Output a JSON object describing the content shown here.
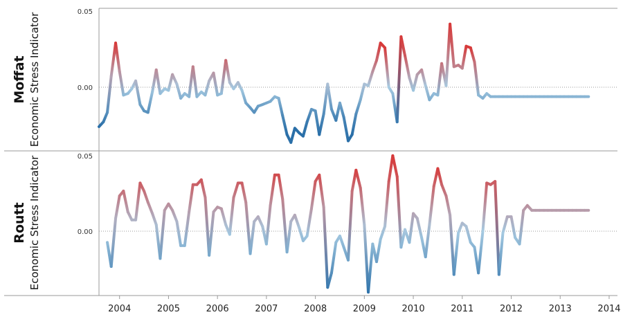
{
  "chart_data": {
    "type": "line",
    "x_axis": {
      "tick_labels": [
        "2004",
        "2005",
        "2006",
        "2007",
        "2008",
        "2009",
        "2010",
        "2011",
        "2012",
        "2013",
        "2014"
      ],
      "range": [
        2003.58,
        2014.17
      ]
    },
    "panels": [
      {
        "title": "Moffat",
        "ylabel": "Economic Stress Indicator",
        "yticks": [
          "0.05",
          "0.00"
        ],
        "ylim": [
          -0.04,
          0.05
        ],
        "zero_line": "dotted",
        "color_scale": {
          "low": "#2a6fa8",
          "mid": "#a7cbe2",
          "high": "#d73a3a",
          "max_abs": 0.025
        },
        "series": [
          {
            "x": [
              2003.58,
              2003.67,
              2003.75,
              2003.83,
              2003.92,
              2004.0,
              2004.08,
              2004.17,
              2004.25,
              2004.33,
              2004.42,
              2004.5,
              2004.58,
              2004.67,
              2004.75,
              2004.83,
              2004.92,
              2005.0,
              2005.08,
              2005.17,
              2005.25,
              2005.33,
              2005.42,
              2005.5,
              2005.58,
              2005.67,
              2005.75,
              2005.83,
              2005.92,
              2006.0,
              2006.08,
              2006.17,
              2006.25,
              2006.33,
              2006.42,
              2006.5,
              2006.58,
              2006.67,
              2006.75,
              2006.83,
              2006.92,
              2007.0,
              2007.08,
              2007.17,
              2007.25,
              2007.33,
              2007.42,
              2007.5,
              2007.58,
              2007.67,
              2007.75,
              2007.83,
              2007.92,
              2008.0,
              2008.08,
              2008.17,
              2008.25,
              2008.33,
              2008.42,
              2008.5,
              2008.58,
              2008.67,
              2008.75,
              2008.83,
              2008.92,
              2009.0,
              2009.08,
              2009.17,
              2009.25,
              2009.33,
              2009.42,
              2009.5,
              2009.58,
              2009.67,
              2009.75,
              2009.83,
              2009.92,
              2010.0,
              2010.08,
              2010.17,
              2010.25,
              2010.33,
              2010.42,
              2010.5,
              2010.58,
              2010.67,
              2010.75,
              2010.83,
              2010.92,
              2011.0,
              2011.08,
              2011.17,
              2011.25,
              2011.33,
              2011.42,
              2011.5,
              2011.58,
              2011.67,
              2011.75,
              2011.83,
              2011.92,
              2012.0,
              2012.08,
              2012.17,
              2012.25,
              2012.33,
              2012.42,
              2012.5,
              2012.58,
              2012.67,
              2012.75,
              2012.83,
              2012.92,
              2013.0,
              2013.08,
              2013.17,
              2013.25,
              2013.33,
              2013.42,
              2013.5,
              2013.58
            ],
            "y": [
              -0.025,
              -0.022,
              -0.016,
              0.007,
              0.028,
              0.01,
              -0.005,
              -0.004,
              -0.001,
              0.004,
              -0.011,
              -0.015,
              -0.016,
              -0.003,
              0.011,
              -0.004,
              -0.001,
              -0.002,
              0.008,
              0.002,
              -0.007,
              -0.004,
              -0.006,
              0.013,
              -0.006,
              -0.003,
              -0.005,
              0.004,
              0.009,
              -0.005,
              -0.004,
              0.017,
              0.003,
              -0.001,
              0.003,
              -0.002,
              -0.01,
              -0.013,
              -0.016,
              -0.012,
              -0.011,
              -0.01,
              -0.009,
              -0.006,
              -0.007,
              -0.018,
              -0.03,
              -0.035,
              -0.026,
              -0.029,
              -0.031,
              -0.022,
              -0.014,
              -0.015,
              -0.03,
              -0.017,
              0.002,
              -0.014,
              -0.021,
              -0.01,
              -0.019,
              -0.034,
              -0.03,
              -0.017,
              -0.008,
              0.002,
              0.001,
              0.01,
              0.017,
              0.028,
              0.025,
              0.0,
              -0.004,
              -0.022,
              0.032,
              0.02,
              0.006,
              -0.002,
              0.008,
              0.011,
              0.001,
              -0.008,
              -0.004,
              -0.005,
              0.015,
              0.001,
              0.04,
              0.013,
              0.014,
              0.012,
              0.026,
              0.025,
              0.016,
              -0.005,
              -0.007,
              -0.004,
              -0.006,
              -0.006,
              -0.006,
              -0.006,
              -0.006,
              -0.006,
              -0.006,
              -0.006,
              -0.006,
              -0.006,
              -0.006,
              -0.006,
              -0.006,
              -0.006,
              -0.006,
              -0.006,
              -0.006,
              -0.006,
              -0.006,
              -0.006,
              -0.006,
              -0.006,
              -0.006,
              -0.006,
              -0.006
            ]
          }
        ]
      },
      {
        "title": "Routt",
        "ylabel": "Economic Stress Indicator",
        "yticks": [
          "0.05",
          "0.00"
        ],
        "ylim": [
          -0.04,
          0.05
        ],
        "zero_line": "dotted",
        "color_scale": {
          "low": "#2a6fa8",
          "mid": "#a7cbe2",
          "high": "#d73a3a",
          "max_abs": 0.04
        },
        "series": [
          {
            "x": [
              2003.75,
              2003.83,
              2003.92,
              2004.0,
              2004.08,
              2004.17,
              2004.25,
              2004.33,
              2004.42,
              2004.5,
              2004.58,
              2004.67,
              2004.75,
              2004.83,
              2004.92,
              2005.0,
              2005.08,
              2005.17,
              2005.25,
              2005.33,
              2005.42,
              2005.5,
              2005.58,
              2005.67,
              2005.75,
              2005.83,
              2005.92,
              2006.0,
              2006.08,
              2006.17,
              2006.25,
              2006.33,
              2006.42,
              2006.5,
              2006.58,
              2006.67,
              2006.75,
              2006.83,
              2006.92,
              2007.0,
              2007.08,
              2007.17,
              2007.25,
              2007.33,
              2007.42,
              2007.5,
              2007.58,
              2007.67,
              2007.75,
              2007.83,
              2007.92,
              2008.0,
              2008.08,
              2008.17,
              2008.25,
              2008.33,
              2008.42,
              2008.5,
              2008.58,
              2008.67,
              2008.75,
              2008.83,
              2008.92,
              2009.0,
              2009.08,
              2009.17,
              2009.25,
              2009.33,
              2009.42,
              2009.5,
              2009.58,
              2009.67,
              2009.75,
              2009.83,
              2009.92,
              2010.0,
              2010.08,
              2010.17,
              2010.25,
              2010.33,
              2010.42,
              2010.5,
              2010.58,
              2010.67,
              2010.75,
              2010.83,
              2010.92,
              2011.0,
              2011.08,
              2011.17,
              2011.25,
              2011.33,
              2011.42,
              2011.5,
              2011.58,
              2011.67,
              2011.75,
              2011.83,
              2011.92,
              2012.0,
              2012.08,
              2012.17,
              2012.25,
              2012.33,
              2012.42,
              2012.5,
              2012.58,
              2012.67,
              2012.75,
              2012.83,
              2012.92,
              2013.0,
              2013.08,
              2013.17,
              2013.25,
              2013.33,
              2013.42,
              2013.5,
              2013.58
            ],
            "y": [
              -0.007,
              -0.022,
              0.008,
              0.022,
              0.025,
              0.012,
              0.007,
              0.007,
              0.03,
              0.025,
              0.018,
              0.011,
              0.004,
              -0.017,
              0.013,
              0.017,
              0.013,
              0.006,
              -0.009,
              -0.009,
              0.012,
              0.029,
              0.029,
              0.032,
              0.021,
              -0.015,
              0.012,
              0.015,
              0.014,
              0.004,
              -0.002,
              0.021,
              0.03,
              0.03,
              0.018,
              -0.014,
              0.006,
              0.009,
              0.003,
              -0.008,
              0.016,
              0.035,
              0.035,
              0.02,
              -0.013,
              0.006,
              0.01,
              0.002,
              -0.006,
              -0.003,
              0.014,
              0.031,
              0.035,
              0.015,
              -0.035,
              -0.026,
              -0.007,
              -0.003,
              -0.01,
              -0.018,
              0.025,
              0.038,
              0.027,
              0.004,
              -0.038,
              -0.008,
              -0.019,
              -0.005,
              0.003,
              0.031,
              0.047,
              0.034,
              -0.01,
              0.001,
              -0.007,
              0.011,
              0.008,
              -0.004,
              -0.016,
              0.004,
              0.028,
              0.039,
              0.029,
              0.022,
              0.01,
              -0.027,
              -0.001,
              0.005,
              0.003,
              -0.007,
              -0.01,
              -0.026,
              0.0,
              0.03,
              0.029,
              0.031,
              -0.027,
              -0.001,
              0.009,
              0.009,
              -0.004,
              -0.008,
              0.013,
              0.016,
              0.013,
              0.013,
              0.013,
              0.013,
              0.013,
              0.013,
              0.013,
              0.013,
              0.013,
              0.013,
              0.013,
              0.013,
              0.013,
              0.013,
              0.013
            ]
          }
        ]
      }
    ]
  }
}
